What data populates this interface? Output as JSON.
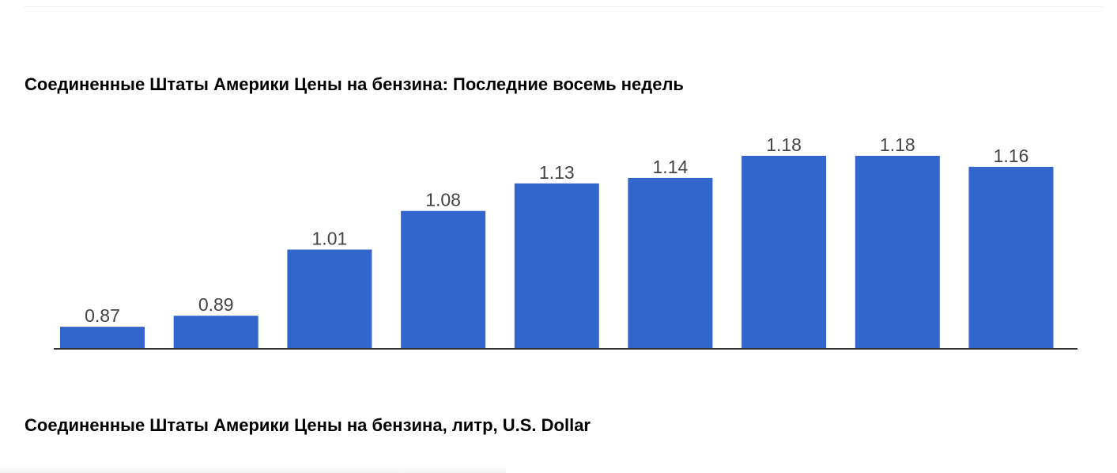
{
  "section": {
    "subtitle": "Соединенные Штаты Америки Цены на бензина, литр, U.S. Dollar"
  },
  "colors": {
    "bar": "#3366cc",
    "axis": "#333333",
    "label": "#444444"
  },
  "chart_data": {
    "type": "bar",
    "title": "Соединенные Штаты Америки Цены на бензина: Последние восемь недель",
    "xlabel": "",
    "ylabel": "",
    "categories": [],
    "values": [
      0.87,
      0.89,
      1.01,
      1.08,
      1.13,
      1.14,
      1.18,
      1.18,
      1.16
    ],
    "labels": [
      "0.87",
      "0.89",
      "1.01",
      "1.08",
      "1.13",
      "1.14",
      "1.18",
      "1.18",
      "1.16"
    ],
    "ylim": [
      0.83,
      1.18
    ],
    "grid": false,
    "legend": "none"
  }
}
